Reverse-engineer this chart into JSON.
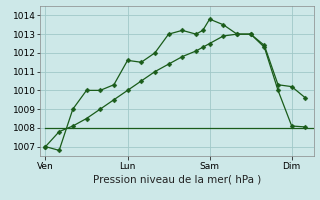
{
  "bg_color": "#cde8e8",
  "grid_color": "#a0c8c8",
  "line_color": "#1a5c1a",
  "xlabel": "Pression niveau de la mer( hPa )",
  "xlabel_fontsize": 7.5,
  "tick_fontsize": 6.5,
  "ylim": [
    1006.5,
    1014.5
  ],
  "yticks": [
    1007,
    1008,
    1009,
    1010,
    1011,
    1012,
    1013,
    1014
  ],
  "xtick_labels": [
    "Ven",
    "Lun",
    "Sam",
    "Dim"
  ],
  "xtick_positions": [
    0,
    3,
    6,
    9
  ],
  "xlim": [
    -0.2,
    9.8
  ],
  "series1_x": [
    0,
    0.5,
    1.0,
    1.5,
    2.0,
    2.5,
    3.0,
    3.5,
    4.0,
    4.5,
    5.0,
    5.5,
    5.75,
    6.0,
    6.5,
    7.0,
    7.5,
    8.0,
    8.5,
    9.0,
    9.5
  ],
  "series1_y": [
    1007.0,
    1006.8,
    1009.0,
    1010.0,
    1010.0,
    1010.3,
    1011.6,
    1011.5,
    1012.0,
    1013.0,
    1013.2,
    1013.0,
    1013.2,
    1013.8,
    1013.5,
    1013.0,
    1013.0,
    1012.4,
    1010.3,
    1010.2,
    1009.6
  ],
  "series2_x": [
    0,
    0.5,
    1.0,
    1.5,
    2.0,
    2.5,
    3.0,
    3.5,
    4.0,
    4.5,
    5.0,
    5.5,
    5.75,
    6.0,
    6.5,
    7.0,
    7.5,
    8.0,
    8.5,
    9.0,
    9.5
  ],
  "series2_y": [
    1007.0,
    1007.8,
    1008.1,
    1008.5,
    1009.0,
    1009.5,
    1010.0,
    1010.5,
    1011.0,
    1011.4,
    1011.8,
    1012.1,
    1012.3,
    1012.5,
    1012.9,
    1013.0,
    1013.0,
    1012.3,
    1010.0,
    1008.1,
    1008.05
  ],
  "flat_line_x": [
    0,
    9.8
  ],
  "flat_line_y": [
    1008.0,
    1008.0
  ],
  "marker_size": 2.5,
  "linewidth": 0.9
}
